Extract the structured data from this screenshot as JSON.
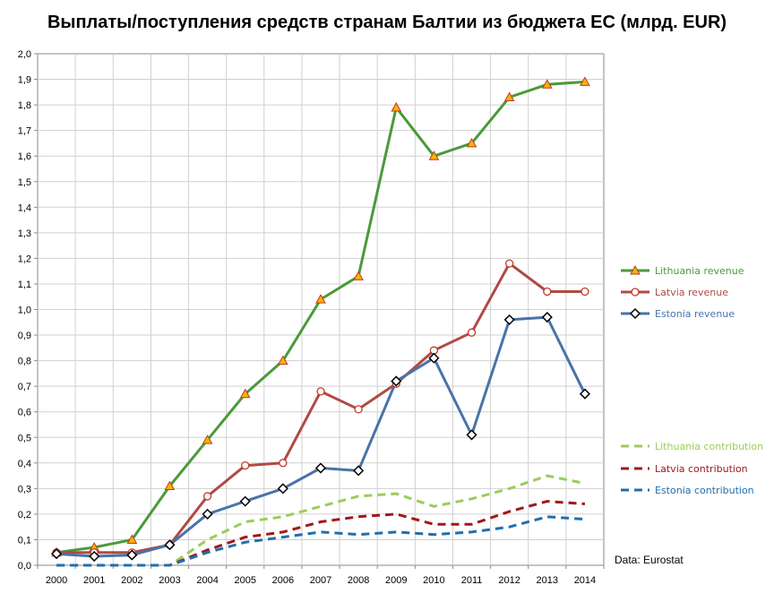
{
  "chart_data": {
    "type": "line",
    "title": "Выплаты/поступления средств странам Балтии из бюджета ЕС (млрд. EUR)",
    "source_note": "Data: Eurostat",
    "x": [
      "2000",
      "2001",
      "2002",
      "2003",
      "2004",
      "2005",
      "2006",
      "2007",
      "2008",
      "2009",
      "2010",
      "2011",
      "2012",
      "2013",
      "2014"
    ],
    "ylim": [
      0,
      2.0
    ],
    "ytick_step": 0.1,
    "y_tick_labels": [
      "0,0",
      "0,1",
      "0,2",
      "0,3",
      "0,4",
      "0,5",
      "0,6",
      "0,7",
      "0,8",
      "0,9",
      "1,0",
      "1,1",
      "1,2",
      "1,3",
      "1,4",
      "1,5",
      "1,6",
      "1,7",
      "1,8",
      "1,9",
      "2,0"
    ],
    "grid": true,
    "legend_position": "right",
    "series": [
      {
        "name": "Lithuania revenue",
        "color": "#4a9a3a",
        "style": "solid",
        "marker": "triangle",
        "values": [
          0.05,
          0.07,
          0.1,
          0.31,
          0.49,
          0.67,
          0.8,
          1.04,
          1.13,
          1.79,
          1.6,
          1.65,
          1.83,
          1.88,
          1.89
        ]
      },
      {
        "name": "Latvia revenue",
        "color": "#b04a44",
        "style": "solid",
        "marker": "circle",
        "values": [
          0.05,
          0.05,
          0.05,
          0.08,
          0.27,
          0.39,
          0.4,
          0.68,
          0.61,
          0.71,
          0.84,
          0.91,
          1.18,
          1.07,
          1.07
        ]
      },
      {
        "name": "Estonia revenue",
        "color": "#4a73a8",
        "style": "solid",
        "marker": "diamond",
        "values": [
          0.045,
          0.035,
          0.04,
          0.08,
          0.2,
          0.25,
          0.3,
          0.38,
          0.37,
          0.72,
          0.81,
          0.51,
          0.96,
          0.97,
          0.67
        ]
      },
      {
        "name": "Lithuania contribution",
        "color": "#9acd5a",
        "style": "dashed",
        "marker": "none",
        "values": [
          0.0,
          0.0,
          0.0,
          0.0,
          0.1,
          0.17,
          0.19,
          0.23,
          0.27,
          0.28,
          0.23,
          0.26,
          0.3,
          0.35,
          0.32
        ]
      },
      {
        "name": "Latvia contribution",
        "color": "#a01818",
        "style": "dashed",
        "marker": "none",
        "values": [
          0.0,
          0.0,
          0.0,
          0.0,
          0.06,
          0.11,
          0.13,
          0.17,
          0.19,
          0.2,
          0.16,
          0.16,
          0.21,
          0.25,
          0.24
        ]
      },
      {
        "name": "Estonia contribution",
        "color": "#1f6fae",
        "style": "dashed",
        "marker": "none",
        "values": [
          0.0,
          0.0,
          0.0,
          0.0,
          0.05,
          0.09,
          0.11,
          0.13,
          0.12,
          0.13,
          0.12,
          0.13,
          0.15,
          0.19,
          0.18
        ]
      }
    ]
  }
}
